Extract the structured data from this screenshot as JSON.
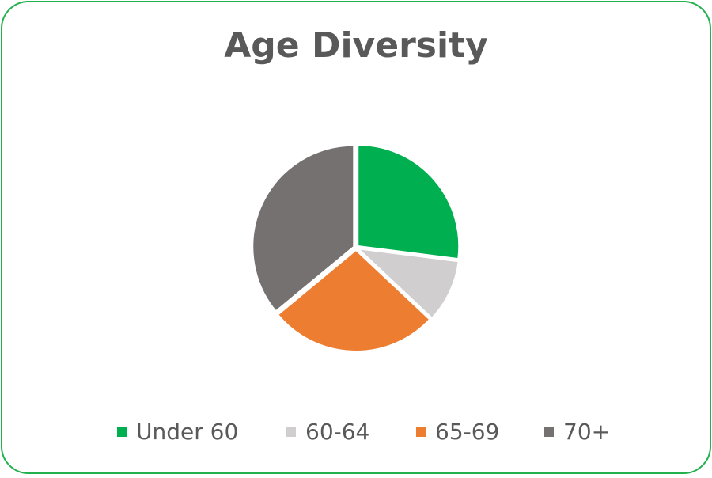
{
  "chart_data": {
    "type": "pie",
    "title": "Age Diversity",
    "categories": [
      "Under 60",
      "60-64",
      "65-69",
      "70+"
    ],
    "values": [
      27,
      10,
      27,
      36
    ],
    "colors": [
      "#00b050",
      "#d0cece",
      "#ed7d31",
      "#757171"
    ],
    "legend": "bottom"
  }
}
